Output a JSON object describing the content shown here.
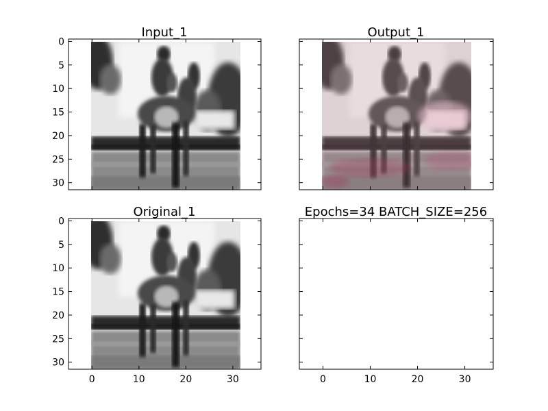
{
  "figure": {
    "background": "#ffffff",
    "grayscale_colormap": "gray",
    "output_tint": "#c48a98"
  },
  "chart_data": [
    {
      "type": "image",
      "title": "Input_1",
      "image_content": "blurred grayscale 32x32 photo of a person riding a horse",
      "xlim": [
        -5,
        36
      ],
      "ylim": [
        31.5,
        -0.5
      ],
      "xticks": [
        0,
        10,
        20,
        30
      ],
      "yticks": [
        0,
        5,
        10,
        15,
        20,
        25,
        30
      ],
      "x_tick_labels_visible": false,
      "y_tick_labels_visible": true
    },
    {
      "type": "image",
      "title": "Output_1",
      "image_content": "reconstructed 32x32 photo of a person riding a horse with faint pink/red color tint",
      "xlim": [
        -5,
        36
      ],
      "ylim": [
        31.5,
        -0.5
      ],
      "xticks": [
        0,
        10,
        20,
        30
      ],
      "yticks": [
        0,
        5,
        10,
        15,
        20,
        25,
        30
      ],
      "x_tick_labels_visible": false,
      "y_tick_labels_visible": false
    },
    {
      "type": "image",
      "title": "Original_1",
      "image_content": "blurred grayscale 32x32 photo of a person riding a horse",
      "xlim": [
        -5,
        36
      ],
      "ylim": [
        31.5,
        -0.5
      ],
      "xticks": [
        0,
        10,
        20,
        30
      ],
      "yticks": [
        0,
        5,
        10,
        15,
        20,
        25,
        30
      ],
      "x_tick_labels_visible": true,
      "y_tick_labels_visible": true
    },
    {
      "type": "image",
      "title": "Epochs=34 BATCH_SIZE=256",
      "image_content": "empty",
      "xlim": [
        -5,
        36
      ],
      "ylim": [
        31.5,
        -0.5
      ],
      "xticks": [
        0,
        10,
        20,
        30
      ],
      "yticks": [
        0,
        5,
        10,
        15,
        20,
        25,
        30
      ],
      "x_tick_labels_visible": true,
      "y_tick_labels_visible": false
    }
  ]
}
